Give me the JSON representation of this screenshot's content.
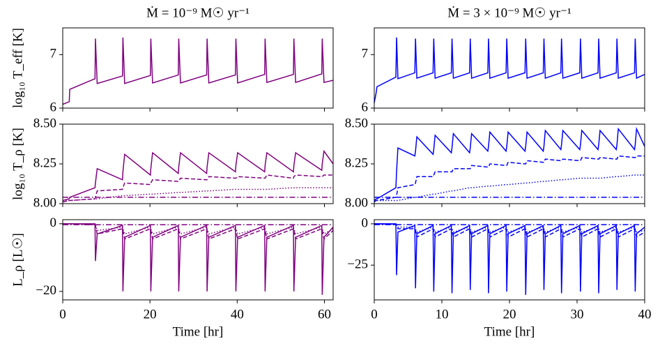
{
  "chart_data": [
    {
      "type": "line",
      "title": "Ṁ = 10⁻⁹ M☉ yr⁻¹",
      "ylabel": "log₁₀ T_eff [K]",
      "x": [
        0,
        1.5,
        1.6,
        7.4,
        7.5,
        7.9,
        13.7,
        13.8,
        14.2,
        20.1,
        20.2,
        20.6,
        26.5,
        26.6,
        27.0,
        33.0,
        33.1,
        33.5,
        39.6,
        39.7,
        40.1,
        46.3,
        46.4,
        46.8,
        52.9,
        53.0,
        53.4,
        59.4,
        59.5,
        59.9,
        62
      ],
      "xlim": [
        0,
        62
      ],
      "xticks": [
        0,
        20,
        40,
        60
      ],
      "xtick_labels": false,
      "ylim": [
        6,
        7.5
      ],
      "yticks": [
        6,
        7
      ],
      "series": [
        {
          "color": "#800080",
          "style": "solid",
          "values": [
            6.07,
            6.12,
            6.35,
            6.55,
            7.3,
            6.46,
            6.6,
            7.32,
            6.46,
            6.61,
            7.3,
            6.47,
            6.62,
            7.3,
            6.47,
            6.62,
            7.3,
            6.47,
            6.62,
            7.3,
            6.47,
            6.63,
            7.3,
            6.48,
            6.63,
            7.3,
            6.48,
            6.64,
            7.3,
            6.48,
            6.52
          ]
        }
      ]
    },
    {
      "type": "line",
      "title": "Ṁ = 3 × 10⁻⁹ M☉ yr⁻¹",
      "x": [
        0,
        0.3,
        0.4,
        3.2,
        3.3,
        3.5,
        6.0,
        6.1,
        6.3,
        8.7,
        8.8,
        9.0,
        11.4,
        11.5,
        11.7,
        14.1,
        14.2,
        14.4,
        16.8,
        16.9,
        17.1,
        19.5,
        19.6,
        19.8,
        22.3,
        22.4,
        22.6,
        25.0,
        25.1,
        25.3,
        27.6,
        27.7,
        27.9,
        30.4,
        30.5,
        30.7,
        33.1,
        33.2,
        33.4,
        35.8,
        35.9,
        36.1,
        38.5,
        38.6,
        38.8,
        40
      ],
      "xlim": [
        0,
        40
      ],
      "xticks": [
        0,
        10,
        20,
        30,
        40
      ],
      "xtick_labels": false,
      "ylim": [
        6,
        7.5
      ],
      "yticks": [
        6,
        7
      ],
      "series": [
        {
          "color": "#0000ff",
          "style": "solid",
          "values": [
            6.1,
            6.3,
            6.4,
            6.58,
            7.32,
            6.55,
            6.66,
            7.3,
            6.56,
            6.66,
            7.3,
            6.56,
            6.66,
            7.3,
            6.56,
            6.66,
            7.3,
            6.56,
            6.66,
            7.3,
            6.56,
            6.66,
            7.3,
            6.56,
            6.66,
            7.3,
            6.56,
            6.66,
            7.3,
            6.56,
            6.66,
            7.3,
            6.56,
            6.66,
            7.3,
            6.56,
            6.66,
            7.3,
            6.56,
            6.66,
            7.3,
            6.56,
            6.66,
            7.3,
            6.56,
            6.63
          ]
        }
      ]
    },
    {
      "type": "line",
      "ylabel": "log₁₀ T_ρ [K]",
      "x": [
        0,
        1.5,
        1.6,
        7.4,
        7.5,
        7.9,
        13.7,
        13.8,
        14.2,
        20.1,
        20.2,
        20.6,
        26.5,
        26.6,
        27.0,
        33.0,
        33.1,
        33.5,
        39.6,
        39.7,
        40.1,
        46.3,
        46.4,
        46.8,
        52.9,
        53.0,
        53.4,
        59.4,
        59.5,
        59.9,
        62
      ],
      "xlim": [
        0,
        62
      ],
      "xticks": [
        0,
        20,
        40,
        60
      ],
      "xtick_labels": false,
      "ylim": [
        8,
        8.5
      ],
      "yticks": [
        {
          "value": 8,
          "label": "8.00"
        },
        {
          "value": 8.25,
          "label": "8.25"
        },
        {
          "value": 8.5,
          "label": "8.50"
        }
      ],
      "series": [
        {
          "color": "#800080",
          "style": "solid",
          "values": [
            8.02,
            8.03,
            8.04,
            8.1,
            8.13,
            8.22,
            8.15,
            8.2,
            8.31,
            8.18,
            8.22,
            8.32,
            8.19,
            8.23,
            8.32,
            8.19,
            8.23,
            8.32,
            8.2,
            8.24,
            8.32,
            8.2,
            8.24,
            8.32,
            8.2,
            8.24,
            8.32,
            8.21,
            8.25,
            8.33,
            8.25
          ]
        },
        {
          "color": "#800080",
          "style": "dashed",
          "values": [
            8.01,
            8.02,
            8.02,
            8.03,
            8.04,
            8.08,
            8.09,
            8.1,
            8.13,
            8.12,
            8.13,
            8.15,
            8.14,
            8.14,
            8.16,
            8.15,
            8.15,
            8.17,
            8.16,
            8.16,
            8.17,
            8.16,
            8.16,
            8.18,
            8.16,
            8.17,
            8.18,
            8.17,
            8.17,
            8.18,
            8.18
          ]
        },
        {
          "color": "#800080",
          "style": "dotted",
          "values": [
            8.02,
            8.02,
            8.02,
            8.03,
            8.03,
            8.03,
            8.05,
            8.05,
            8.05,
            8.06,
            8.06,
            8.06,
            8.07,
            8.07,
            8.07,
            8.08,
            8.08,
            8.08,
            8.09,
            8.09,
            8.09,
            8.09,
            8.09,
            8.09,
            8.1,
            8.1,
            8.1,
            8.1,
            8.1,
            8.1,
            8.1
          ]
        },
        {
          "color": "#800080",
          "style": "dashdot",
          "values": [
            8.04,
            8.04,
            8.04,
            8.04,
            8.04,
            8.04,
            8.04,
            8.04,
            8.04,
            8.04,
            8.04,
            8.04,
            8.04,
            8.04,
            8.04,
            8.04,
            8.04,
            8.04,
            8.04,
            8.04,
            8.04,
            8.04,
            8.04,
            8.04,
            8.04,
            8.04,
            8.04,
            8.04,
            8.04,
            8.04,
            8.04
          ]
        }
      ]
    },
    {
      "type": "line",
      "x": [
        0,
        0.3,
        0.4,
        3.2,
        3.3,
        3.5,
        6.0,
        6.1,
        6.3,
        8.7,
        8.8,
        9.0,
        11.4,
        11.5,
        11.7,
        14.1,
        14.2,
        14.4,
        16.8,
        16.9,
        17.1,
        19.5,
        19.6,
        19.8,
        22.3,
        22.4,
        22.6,
        25.0,
        25.1,
        25.3,
        27.6,
        27.7,
        27.9,
        30.4,
        30.5,
        30.7,
        33.1,
        33.2,
        33.4,
        35.8,
        35.9,
        36.1,
        38.5,
        38.6,
        38.8,
        40
      ],
      "xlim": [
        0,
        40
      ],
      "xticks": [
        0,
        10,
        20,
        30,
        40
      ],
      "xtick_labels": false,
      "ylim": [
        8,
        8.5
      ],
      "yticks": [
        {
          "value": 8,
          "label": "8.00"
        },
        {
          "value": 8.25,
          "label": "8.25"
        },
        {
          "value": 8.5,
          "label": "8.50"
        }
      ],
      "series": [
        {
          "color": "#0000ff",
          "style": "solid",
          "values": [
            8.02,
            8.03,
            8.03,
            8.1,
            8.2,
            8.35,
            8.3,
            8.33,
            8.42,
            8.31,
            8.34,
            8.43,
            8.32,
            8.35,
            8.44,
            8.32,
            8.35,
            8.44,
            8.33,
            8.36,
            8.45,
            8.33,
            8.36,
            8.45,
            8.33,
            8.36,
            8.45,
            8.33,
            8.36,
            8.46,
            8.34,
            8.37,
            8.46,
            8.34,
            8.37,
            8.46,
            8.34,
            8.37,
            8.46,
            8.34,
            8.37,
            8.47,
            8.34,
            8.37,
            8.47,
            8.36
          ]
        },
        {
          "color": "#0000ff",
          "style": "dashed",
          "values": [
            8.01,
            8.02,
            8.02,
            8.04,
            8.05,
            8.1,
            8.12,
            8.13,
            8.17,
            8.17,
            8.18,
            8.2,
            8.2,
            8.2,
            8.22,
            8.22,
            8.22,
            8.24,
            8.23,
            8.23,
            8.25,
            8.24,
            8.24,
            8.26,
            8.25,
            8.25,
            8.27,
            8.26,
            8.26,
            8.28,
            8.27,
            8.27,
            8.28,
            8.27,
            8.27,
            8.29,
            8.28,
            8.28,
            8.29,
            8.28,
            8.28,
            8.3,
            8.29,
            8.29,
            8.3,
            8.3
          ]
        },
        {
          "color": "#0000ff",
          "style": "dotted",
          "values": [
            8.02,
            8.02,
            8.02,
            8.02,
            8.02,
            8.02,
            8.04,
            8.04,
            8.04,
            8.06,
            8.06,
            8.06,
            8.08,
            8.08,
            8.08,
            8.1,
            8.1,
            8.1,
            8.11,
            8.11,
            8.11,
            8.12,
            8.12,
            8.12,
            8.13,
            8.13,
            8.13,
            8.14,
            8.14,
            8.14,
            8.15,
            8.15,
            8.15,
            8.16,
            8.16,
            8.16,
            8.16,
            8.16,
            8.16,
            8.17,
            8.17,
            8.17,
            8.18,
            8.18,
            8.18,
            8.18
          ]
        },
        {
          "color": "#0000ff",
          "style": "dashdot",
          "values": [
            8.04,
            8.04,
            8.04,
            8.04,
            8.04,
            8.04,
            8.04,
            8.04,
            8.04,
            8.04,
            8.04,
            8.04,
            8.04,
            8.04,
            8.04,
            8.04,
            8.04,
            8.04,
            8.04,
            8.04,
            8.04,
            8.04,
            8.04,
            8.04,
            8.04,
            8.04,
            8.04,
            8.04,
            8.04,
            8.04,
            8.04,
            8.04,
            8.04,
            8.04,
            8.04,
            8.04,
            8.04,
            8.04,
            8.04,
            8.04,
            8.04,
            8.04,
            8.04,
            8.04,
            8.04,
            8.04
          ]
        }
      ]
    },
    {
      "type": "line",
      "ylabel": "L_ρ [L☉]",
      "xlabel": "Time [hr]",
      "x": [
        0,
        1.5,
        1.6,
        7.4,
        7.5,
        7.9,
        13.7,
        13.8,
        14.2,
        20.1,
        20.2,
        20.6,
        26.5,
        26.6,
        27.0,
        33.0,
        33.1,
        33.5,
        39.6,
        39.7,
        40.1,
        46.3,
        46.4,
        46.8,
        52.9,
        53.0,
        53.4,
        59.4,
        59.5,
        59.9,
        62
      ],
      "xlim": [
        0,
        62
      ],
      "xticks": [
        0,
        20,
        40,
        60
      ],
      "xtick_labels": true,
      "ylim": [
        -22.5,
        1.2
      ],
      "yticks": [
        {
          "value": -20,
          "label": "−20"
        },
        0
      ],
      "series": [
        {
          "color": "#800080",
          "style": "solid",
          "values": [
            0,
            0,
            0,
            0,
            -11,
            -3,
            -0.5,
            -20,
            -4,
            -0.5,
            -20,
            -4,
            -0.5,
            -20,
            -4,
            -0.5,
            -20,
            -4,
            -0.5,
            -20,
            -4,
            -0.5,
            -20,
            -4,
            -0.5,
            -20,
            -4,
            -0.5,
            -21,
            -4,
            -1
          ]
        },
        {
          "color": "#800080",
          "style": "dashed",
          "values": [
            0,
            0,
            0,
            -0.3,
            -0.5,
            -3,
            -1.5,
            -2,
            -4.5,
            -1.5,
            -2,
            -4.5,
            -1.5,
            -2,
            -4.5,
            -1.5,
            -2,
            -4.5,
            -1.5,
            -2,
            -4.5,
            -1.5,
            -2,
            -4.5,
            -1.5,
            -2,
            -4.5,
            -1.5,
            -2,
            -4.5,
            -2
          ]
        },
        {
          "color": "#800080",
          "style": "dotted",
          "values": [
            0,
            0,
            0,
            -0.2,
            -0.3,
            -2,
            -1,
            -1.5,
            -3,
            -1,
            -1.5,
            -3,
            -1,
            -1.5,
            -3,
            -1,
            -1.5,
            -3,
            -1,
            -1.5,
            -3,
            -1,
            -1.5,
            -3,
            -1,
            -1.5,
            -3,
            -1,
            -1.5,
            -3,
            -1.5
          ]
        },
        {
          "color": "#800080",
          "style": "dashdot",
          "values": [
            -0.3,
            -0.3,
            -0.3,
            -0.3,
            -0.3,
            -0.3,
            -0.3,
            -0.3,
            -0.3,
            -0.3,
            -0.3,
            -0.3,
            -0.3,
            -0.3,
            -0.3,
            -0.3,
            -0.3,
            -0.3,
            -0.3,
            -0.3,
            -0.3,
            -0.3,
            -0.3,
            -0.3,
            -0.3,
            -0.3,
            -0.3,
            -0.3,
            -0.3,
            -0.3,
            -0.3
          ]
        }
      ]
    },
    {
      "type": "line",
      "xlabel": "Time [hr]",
      "x": [
        0,
        0.3,
        0.4,
        3.2,
        3.3,
        3.5,
        6.0,
        6.1,
        6.3,
        8.7,
        8.8,
        9.0,
        11.4,
        11.5,
        11.7,
        14.1,
        14.2,
        14.4,
        16.8,
        16.9,
        17.1,
        19.5,
        19.6,
        19.8,
        22.3,
        22.4,
        22.6,
        25.0,
        25.1,
        25.3,
        27.6,
        27.7,
        27.9,
        30.4,
        30.5,
        30.7,
        33.1,
        33.2,
        33.4,
        35.8,
        35.9,
        36.1,
        38.5,
        38.6,
        38.8,
        40
      ],
      "xlim": [
        0,
        40
      ],
      "xticks": [
        0,
        10,
        20,
        30,
        40
      ],
      "xtick_labels": true,
      "ylim": [
        -46,
        2.5
      ],
      "yticks": [
        {
          "value": -25,
          "label": "−25"
        },
        0
      ],
      "series": [
        {
          "color": "#0000ff",
          "style": "solid",
          "values": [
            0,
            0,
            0,
            0,
            -31,
            -5,
            -1,
            -39,
            -6,
            -1,
            -41,
            -6,
            -1,
            -42,
            -6,
            -1,
            -40,
            -6,
            -1,
            -42,
            -6,
            -1,
            -41,
            -6,
            -1,
            -43,
            -6,
            -1,
            -40,
            -6,
            -1,
            -42,
            -6,
            -1,
            -41,
            -6,
            -1,
            -42,
            -6,
            -1,
            -40,
            -6,
            -1,
            -41,
            -6,
            -2
          ]
        },
        {
          "color": "#0000ff",
          "style": "dashed",
          "values": [
            0,
            0,
            0,
            -0.5,
            -1,
            -3,
            -3,
            -4,
            -8,
            -3,
            -4,
            -8,
            -3,
            -4,
            -8,
            -3,
            -4,
            -8,
            -3,
            -4,
            -8,
            -3,
            -4,
            -8,
            -3,
            -4,
            -8,
            -3,
            -4,
            -8,
            -3,
            -4,
            -8,
            -3,
            -4,
            -8,
            -3,
            -4,
            -8,
            -3,
            -4,
            -8,
            -3,
            -4,
            -8,
            -5
          ]
        },
        {
          "color": "#0000ff",
          "style": "dotted",
          "values": [
            0,
            0,
            0,
            -0.3,
            -0.5,
            -2,
            -2,
            -3,
            -5,
            -2,
            -3,
            -5,
            -2,
            -3,
            -5,
            -2,
            -3,
            -5,
            -2,
            -3,
            -5,
            -2,
            -3,
            -5,
            -2,
            -3,
            -5,
            -2,
            -3,
            -5,
            -2,
            -3,
            -5,
            -2,
            -3,
            -5,
            -2,
            -3,
            -5,
            -2,
            -3,
            -5,
            -2,
            -3,
            -5,
            -4
          ]
        },
        {
          "color": "#0000ff",
          "style": "dashdot",
          "values": [
            -0.5,
            -0.5,
            -0.5,
            -0.5,
            -0.5,
            -0.5,
            -0.5,
            -0.5,
            -0.5,
            -0.5,
            -0.5,
            -0.5,
            -0.5,
            -0.5,
            -0.5,
            -0.5,
            -0.5,
            -0.5,
            -0.5,
            -0.5,
            -0.5,
            -0.5,
            -0.5,
            -0.5,
            -0.5,
            -0.5,
            -0.5,
            -0.5,
            -0.5,
            -0.5,
            -0.5,
            -0.5,
            -0.5,
            -0.5,
            -0.5,
            -0.5,
            -0.5,
            -0.5,
            -0.5,
            -0.5,
            -0.5,
            -0.5,
            -0.5,
            -0.5,
            -0.5,
            -0.5
          ]
        }
      ]
    }
  ]
}
